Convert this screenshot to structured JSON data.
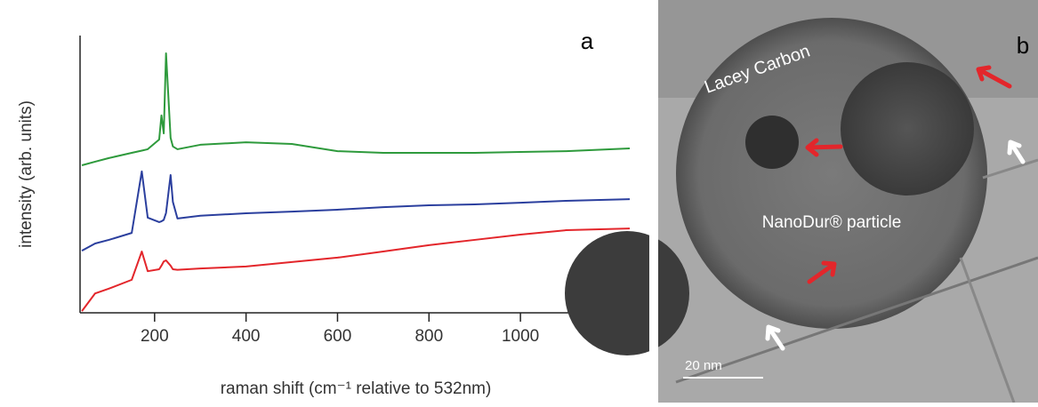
{
  "chart_data": {
    "type": "line",
    "panel_label": "a",
    "x_label": "raman shift (cm⁻¹ relative to 532nm)",
    "y_label": "intensity (arb. units)",
    "x": [
      41,
      70,
      100,
      150,
      172,
      185,
      210,
      215,
      220,
      225,
      235,
      240,
      250,
      300,
      400,
      500,
      600,
      700,
      800,
      900,
      1000,
      1100,
      1239
    ],
    "series": [
      {
        "color": "#e3262b",
        "values": [
          0.06,
          0.7,
          0.87,
          1.19,
          2.21,
          1.5,
          1.57,
          1.7,
          1.85,
          1.89,
          1.7,
          1.57,
          1.55,
          1.6,
          1.67,
          1.83,
          1.99,
          2.21,
          2.44,
          2.63,
          2.82,
          2.98,
          3.04
        ]
      },
      {
        "color": "#2b3f9e",
        "values": [
          2.24,
          2.5,
          2.63,
          2.88,
          5.1,
          3.43,
          3.27,
          3.3,
          3.35,
          3.6,
          4.97,
          4.0,
          3.4,
          3.5,
          3.59,
          3.65,
          3.72,
          3.81,
          3.88,
          3.91,
          3.97,
          4.04,
          4.1
        ]
      },
      {
        "color": "#2e9a3c",
        "values": [
          5.32,
          5.45,
          5.58,
          5.77,
          5.85,
          5.9,
          6.25,
          7.12,
          6.47,
          9.36,
          6.31,
          6.0,
          5.9,
          6.06,
          6.15,
          6.09,
          5.83,
          5.77,
          5.77,
          5.77,
          5.8,
          5.83,
          5.93
        ]
      }
    ],
    "xlim": [
      37,
      1239
    ],
    "xticks": [
      200,
      400,
      600,
      800,
      1000
    ],
    "ylim": [
      0,
      10
    ]
  },
  "image": {
    "panel_label": "b",
    "labels": [
      "Lacey Carbon",
      "NanoDur® particle"
    ],
    "scale_bar": "20 nm"
  }
}
